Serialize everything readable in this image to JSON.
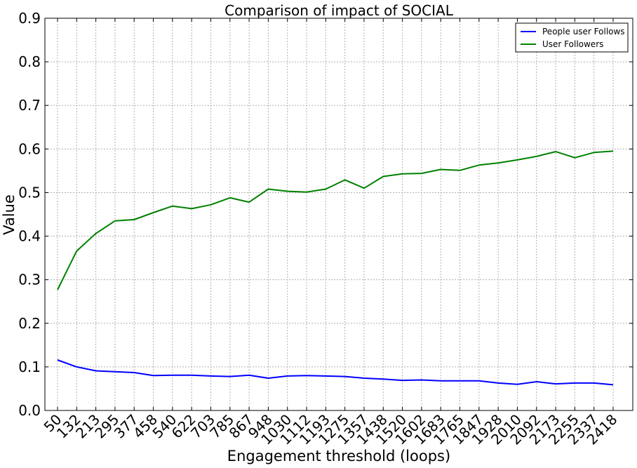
{
  "chart_data": {
    "type": "line",
    "title": "Comparison of impact of SOCIAL",
    "xlabel": "Engagement threshold (loops)",
    "ylabel": "Value",
    "ylim": [
      0,
      0.9
    ],
    "yticks": [
      "0.0",
      "0.1",
      "0.2",
      "0.3",
      "0.4",
      "0.5",
      "0.6",
      "0.7",
      "0.8",
      "0.9"
    ],
    "categories": [
      "50",
      "132",
      "213",
      "295",
      "377",
      "458",
      "540",
      "622",
      "703",
      "785",
      "867",
      "948",
      "1030",
      "1112",
      "1193",
      "1275",
      "1357",
      "1438",
      "1520",
      "1602",
      "1683",
      "1765",
      "1847",
      "1928",
      "2010",
      "2092",
      "2173",
      "2255",
      "2337",
      "2418"
    ],
    "grid": true,
    "legend_position": "top-right",
    "series": [
      {
        "name": "People user Follows",
        "color": "#0000ff",
        "values": [
          0.116,
          0.1,
          0.091,
          0.089,
          0.087,
          0.08,
          0.081,
          0.081,
          0.079,
          0.078,
          0.081,
          0.074,
          0.079,
          0.08,
          0.079,
          0.078,
          0.074,
          0.072,
          0.069,
          0.07,
          0.068,
          0.068,
          0.068,
          0.063,
          0.06,
          0.066,
          0.061,
          0.063,
          0.063,
          0.059
        ]
      },
      {
        "name": "User Followers",
        "color": "#008000",
        "values": [
          0.277,
          0.366,
          0.406,
          0.435,
          0.438,
          0.454,
          0.469,
          0.463,
          0.472,
          0.488,
          0.478,
          0.508,
          0.503,
          0.501,
          0.508,
          0.529,
          0.51,
          0.537,
          0.543,
          0.544,
          0.553,
          0.551,
          0.563,
          0.568,
          0.575,
          0.583,
          0.594,
          0.58,
          0.592,
          0.595
        ]
      }
    ]
  }
}
